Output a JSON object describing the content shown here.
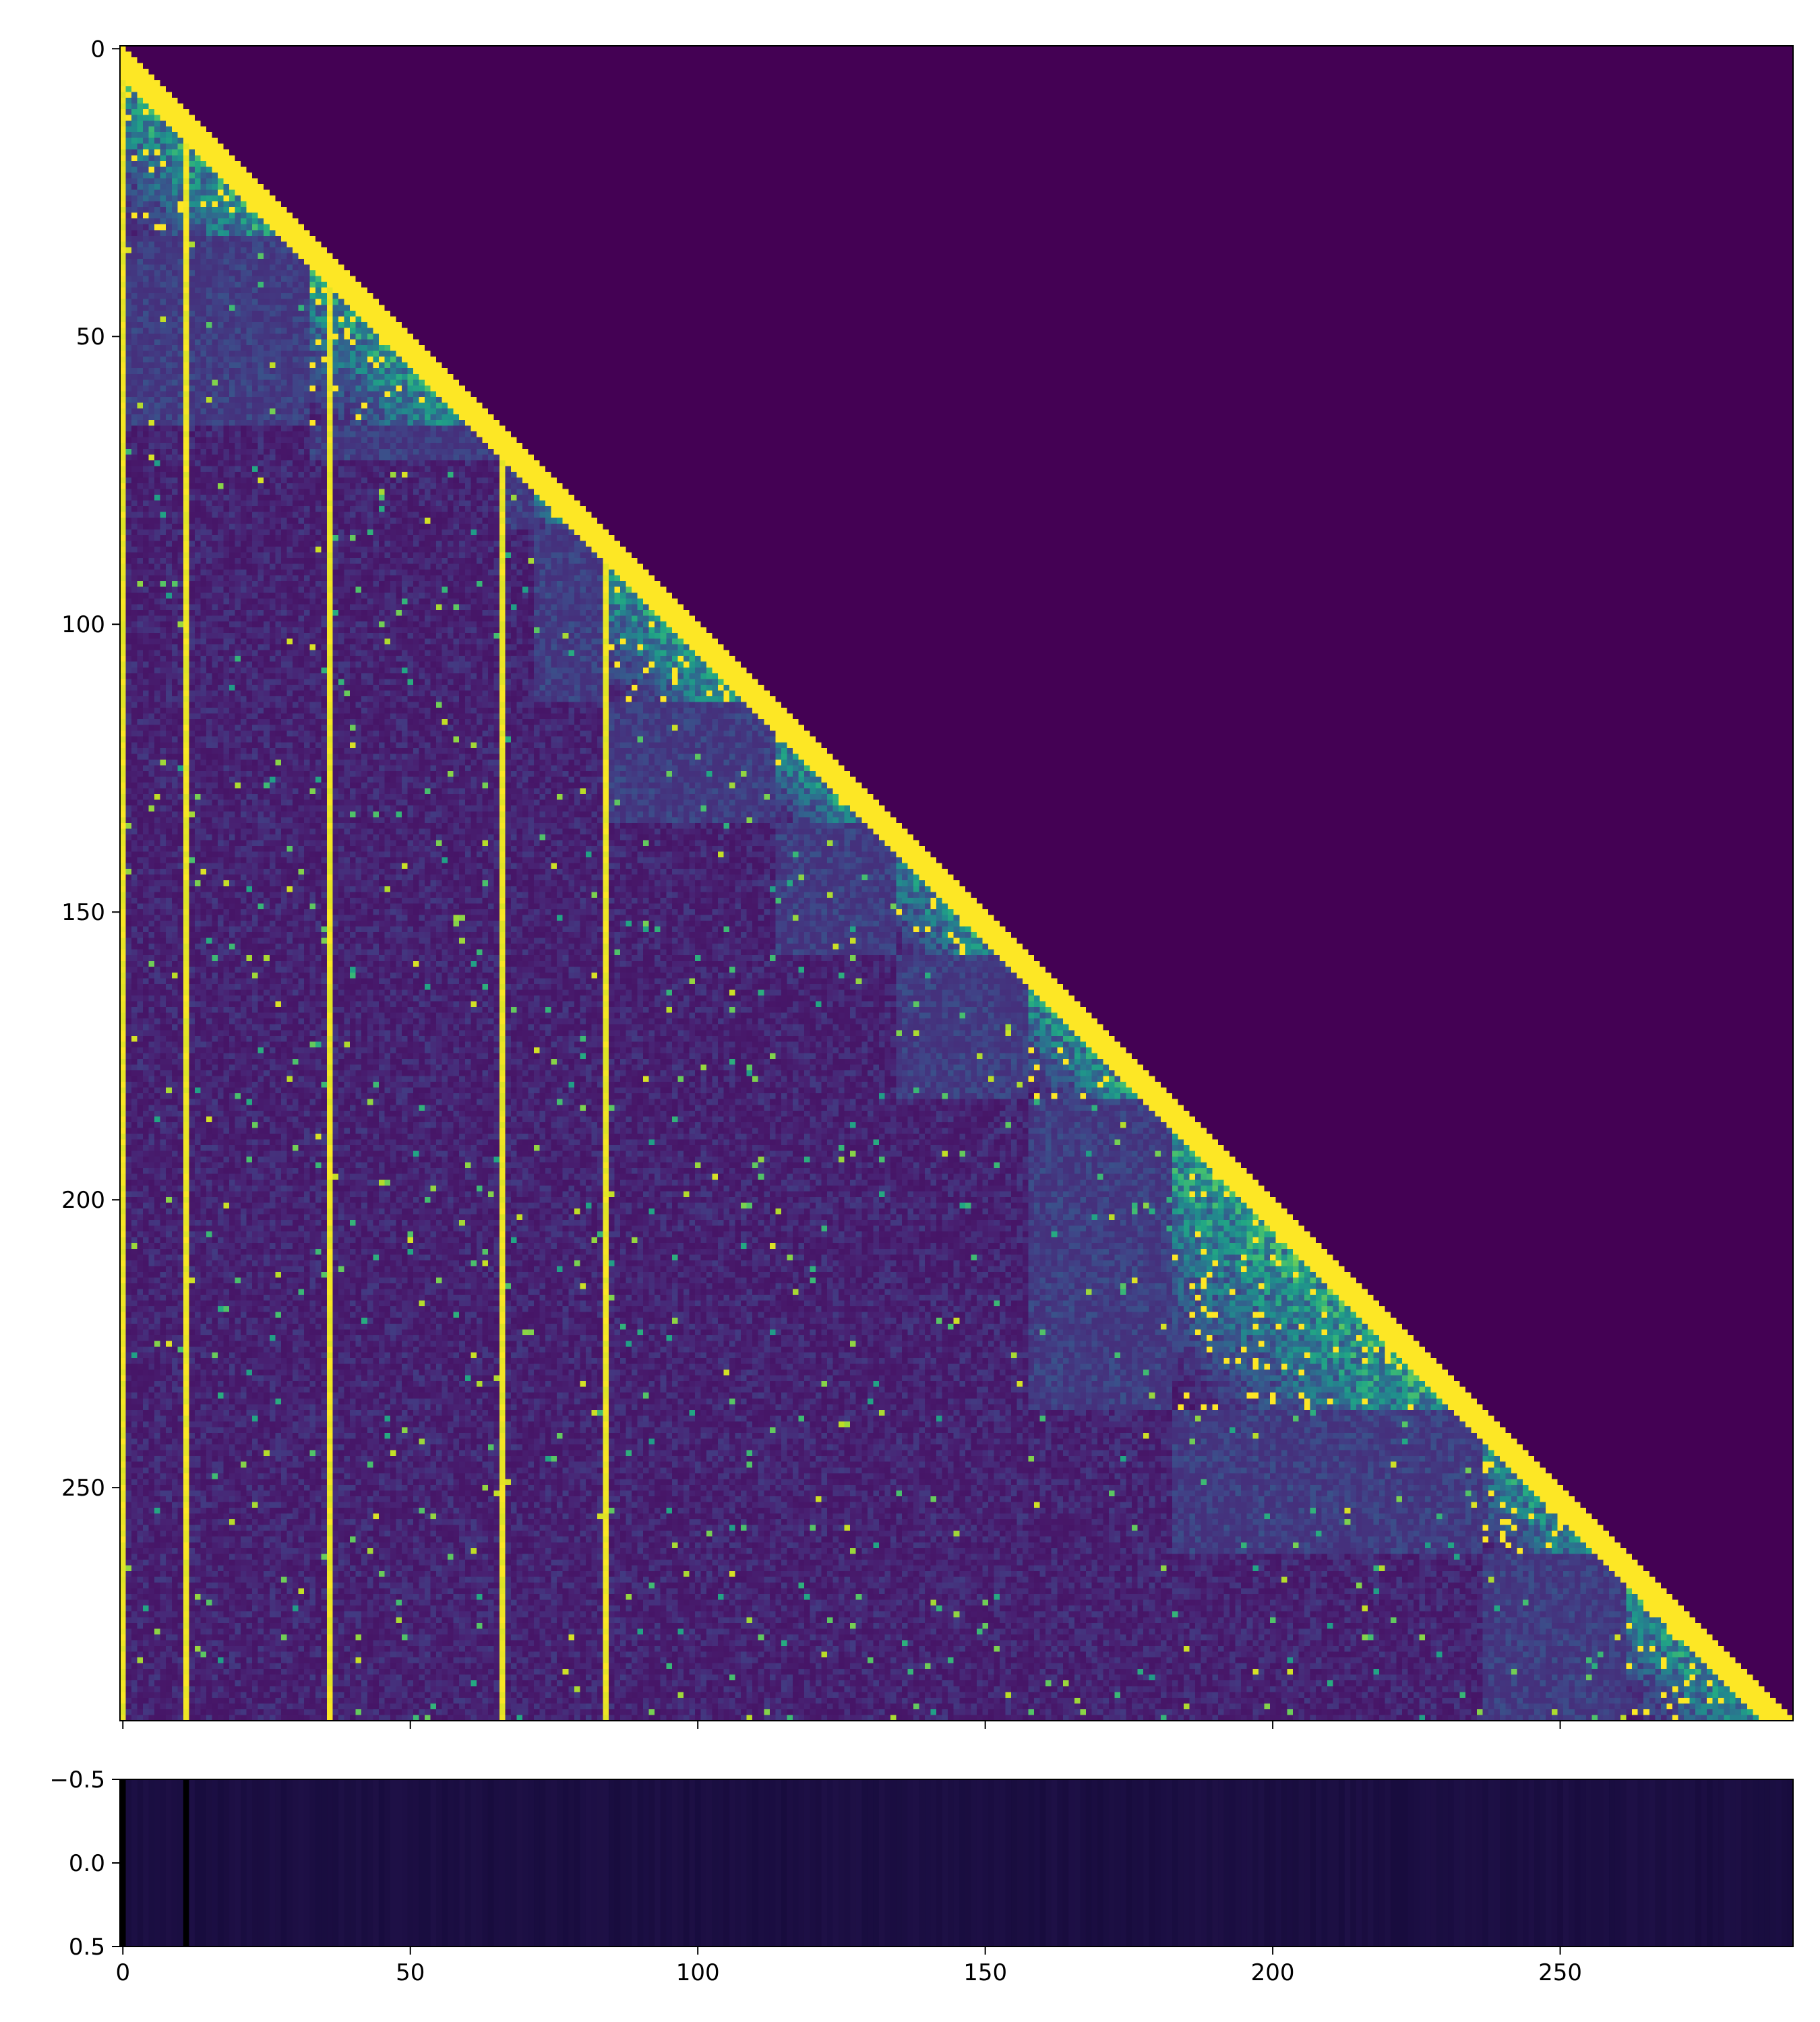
{
  "chart_data": [
    {
      "type": "heatmap",
      "title": "",
      "xlabel": "",
      "ylabel": "",
      "n": 291,
      "x_ticks": [
        0,
        50,
        100,
        150,
        200,
        250
      ],
      "x_tick_labels": [
        "",
        "",
        "",
        "",
        "",
        ""
      ],
      "y_ticks": [
        0,
        50,
        100,
        150,
        200,
        250
      ],
      "y_tick_labels": [
        "0",
        "50",
        "100",
        "150",
        "200",
        "250"
      ],
      "colormap": "viridis",
      "structure": "lower-triangular attention matrix; bright diagonal band, dark upper triangle",
      "block_boundaries": [
        33,
        66,
        72,
        84,
        114,
        135,
        158,
        183,
        237,
        262
      ],
      "bright_columns": [
        0,
        11,
        36,
        66,
        84
      ],
      "colors": {
        "low": "#440154",
        "mid_dark": "#3b528b",
        "mid": "#21918c",
        "high": "#fde725"
      }
    },
    {
      "type": "heatmap",
      "title": "",
      "xlabel": "",
      "ylabel": "",
      "n": 291,
      "x_ticks": [
        0,
        50,
        100,
        150,
        200,
        250
      ],
      "x_tick_labels": [
        "0",
        "50",
        "100",
        "150",
        "200",
        "250"
      ],
      "y_ticks": [
        -0.5,
        0.0,
        0.5
      ],
      "y_tick_labels": [
        "−0.5",
        "0.0",
        "0.5"
      ],
      "colormap": "magma",
      "structure": "single-row strip, nearly uniform dark with black columns at 0 and 11",
      "black_columns": [
        0,
        11
      ],
      "colors": {
        "base": "#1a0c40",
        "black": "#000000"
      }
    }
  ]
}
